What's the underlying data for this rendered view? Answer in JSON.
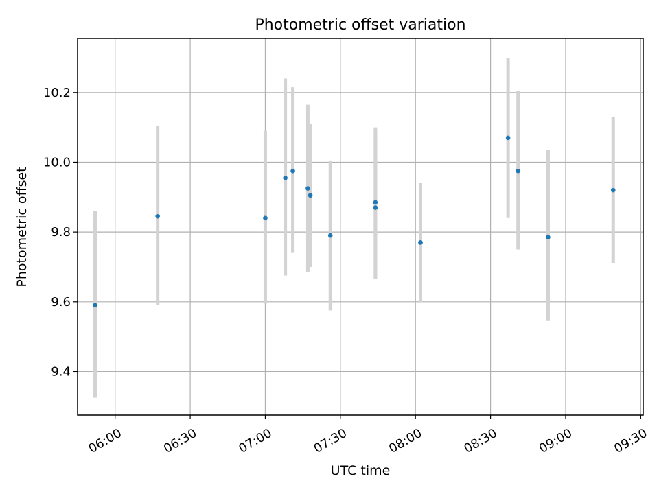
{
  "chart_data": {
    "type": "scatter",
    "title": "Photometric offset variation",
    "xlabel": "UTC time",
    "ylabel": "Photometric offset",
    "x_axis": "time",
    "xlim": [
      "05:45",
      "09:31"
    ],
    "ylim": [
      9.275,
      10.355
    ],
    "grid": true,
    "legend": "none",
    "xticks": [
      "06:00",
      "06:30",
      "07:00",
      "07:30",
      "08:00",
      "08:30",
      "09:00",
      "09:30"
    ],
    "yticks": [
      9.4,
      9.6,
      9.8,
      10.0,
      10.2
    ],
    "ytick_labels": [
      "9.4",
      "9.6",
      "9.8",
      "10.0",
      "10.2"
    ],
    "colors": {
      "marker": "#1f77b4",
      "errorbar": "#d3d3d3"
    },
    "series": [
      {
        "x": [
          "05:52",
          "06:17",
          "07:00",
          "07:08",
          "07:11",
          "07:17",
          "07:18",
          "07:26",
          "07:44",
          "07:44",
          "08:02",
          "08:02",
          "08:37",
          "08:41",
          "08:53",
          "09:19"
        ],
        "y": [
          9.59,
          9.845,
          9.84,
          9.955,
          9.975,
          9.925,
          9.905,
          9.79,
          9.885,
          9.87,
          9.77,
          9.77,
          10.07,
          9.975,
          9.785,
          9.92
        ],
        "yerr_low": [
          9.325,
          9.59,
          9.595,
          9.675,
          9.74,
          9.685,
          9.7,
          9.575,
          9.665,
          9.665,
          9.6,
          9.6,
          9.84,
          9.75,
          9.545,
          9.71
        ],
        "yerr_high": [
          9.86,
          10.105,
          10.09,
          10.24,
          10.215,
          10.165,
          10.11,
          10.005,
          10.1,
          10.085,
          9.94,
          9.94,
          10.3,
          10.205,
          10.035,
          10.13
        ]
      }
    ]
  }
}
